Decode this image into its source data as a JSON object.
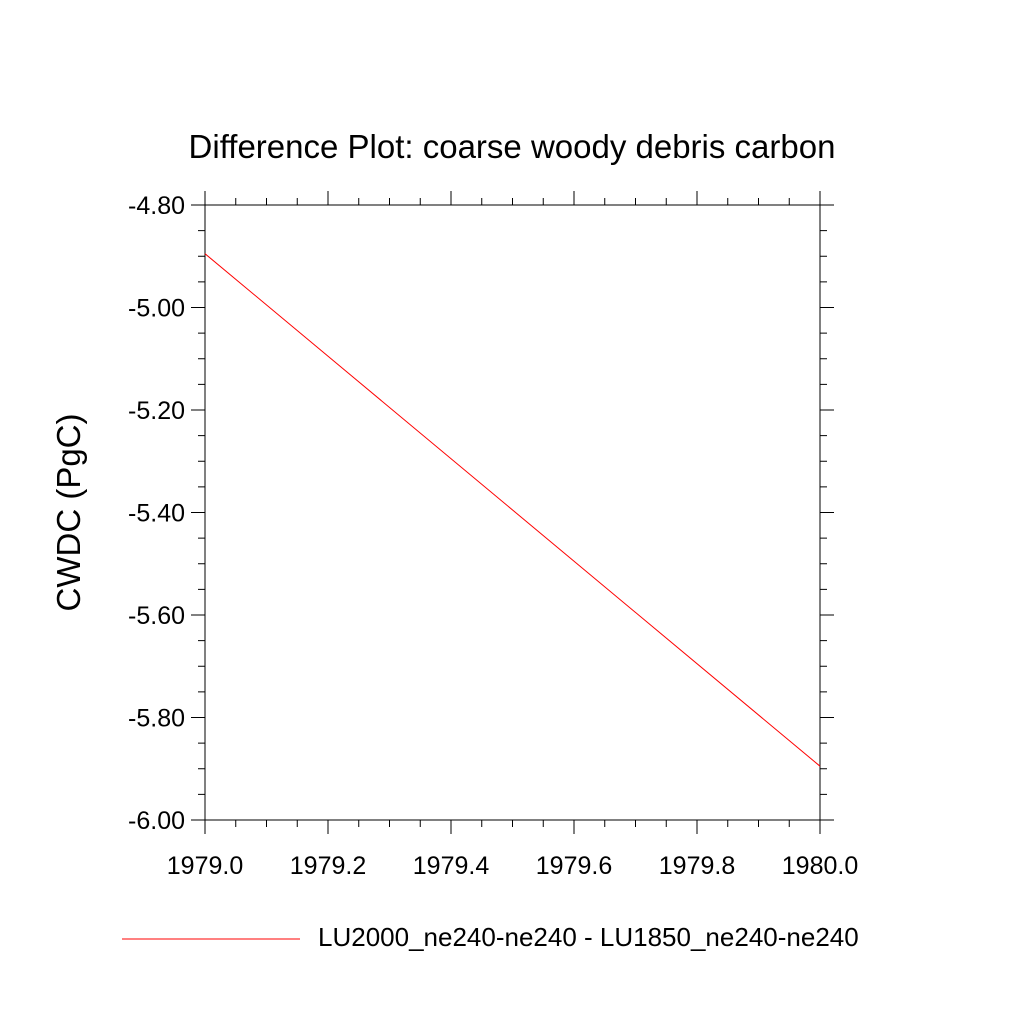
{
  "chart_data": {
    "type": "line",
    "title": "Difference Plot: coarse woody debris carbon",
    "ylabel": "CWDC  (PgC)",
    "xlabel": "",
    "xlim": [
      1979.0,
      1980.0
    ],
    "ylim": [
      -6.0,
      -4.8
    ],
    "x_ticks": [
      "1979.0",
      "1979.2",
      "1979.4",
      "1979.6",
      "1979.8",
      "1980.0"
    ],
    "y_ticks": [
      "-4.80",
      "-5.00",
      "-5.20",
      "-5.40",
      "-5.60",
      "-5.80",
      "-6.00"
    ],
    "legend_position": "bottom",
    "series": [
      {
        "name": "LU2000_ne240-ne240 - LU1850_ne240-ne240",
        "color": "#ff0000",
        "x": [
          1979.0,
          1980.0
        ],
        "y": [
          -4.895,
          -5.895
        ]
      }
    ]
  }
}
